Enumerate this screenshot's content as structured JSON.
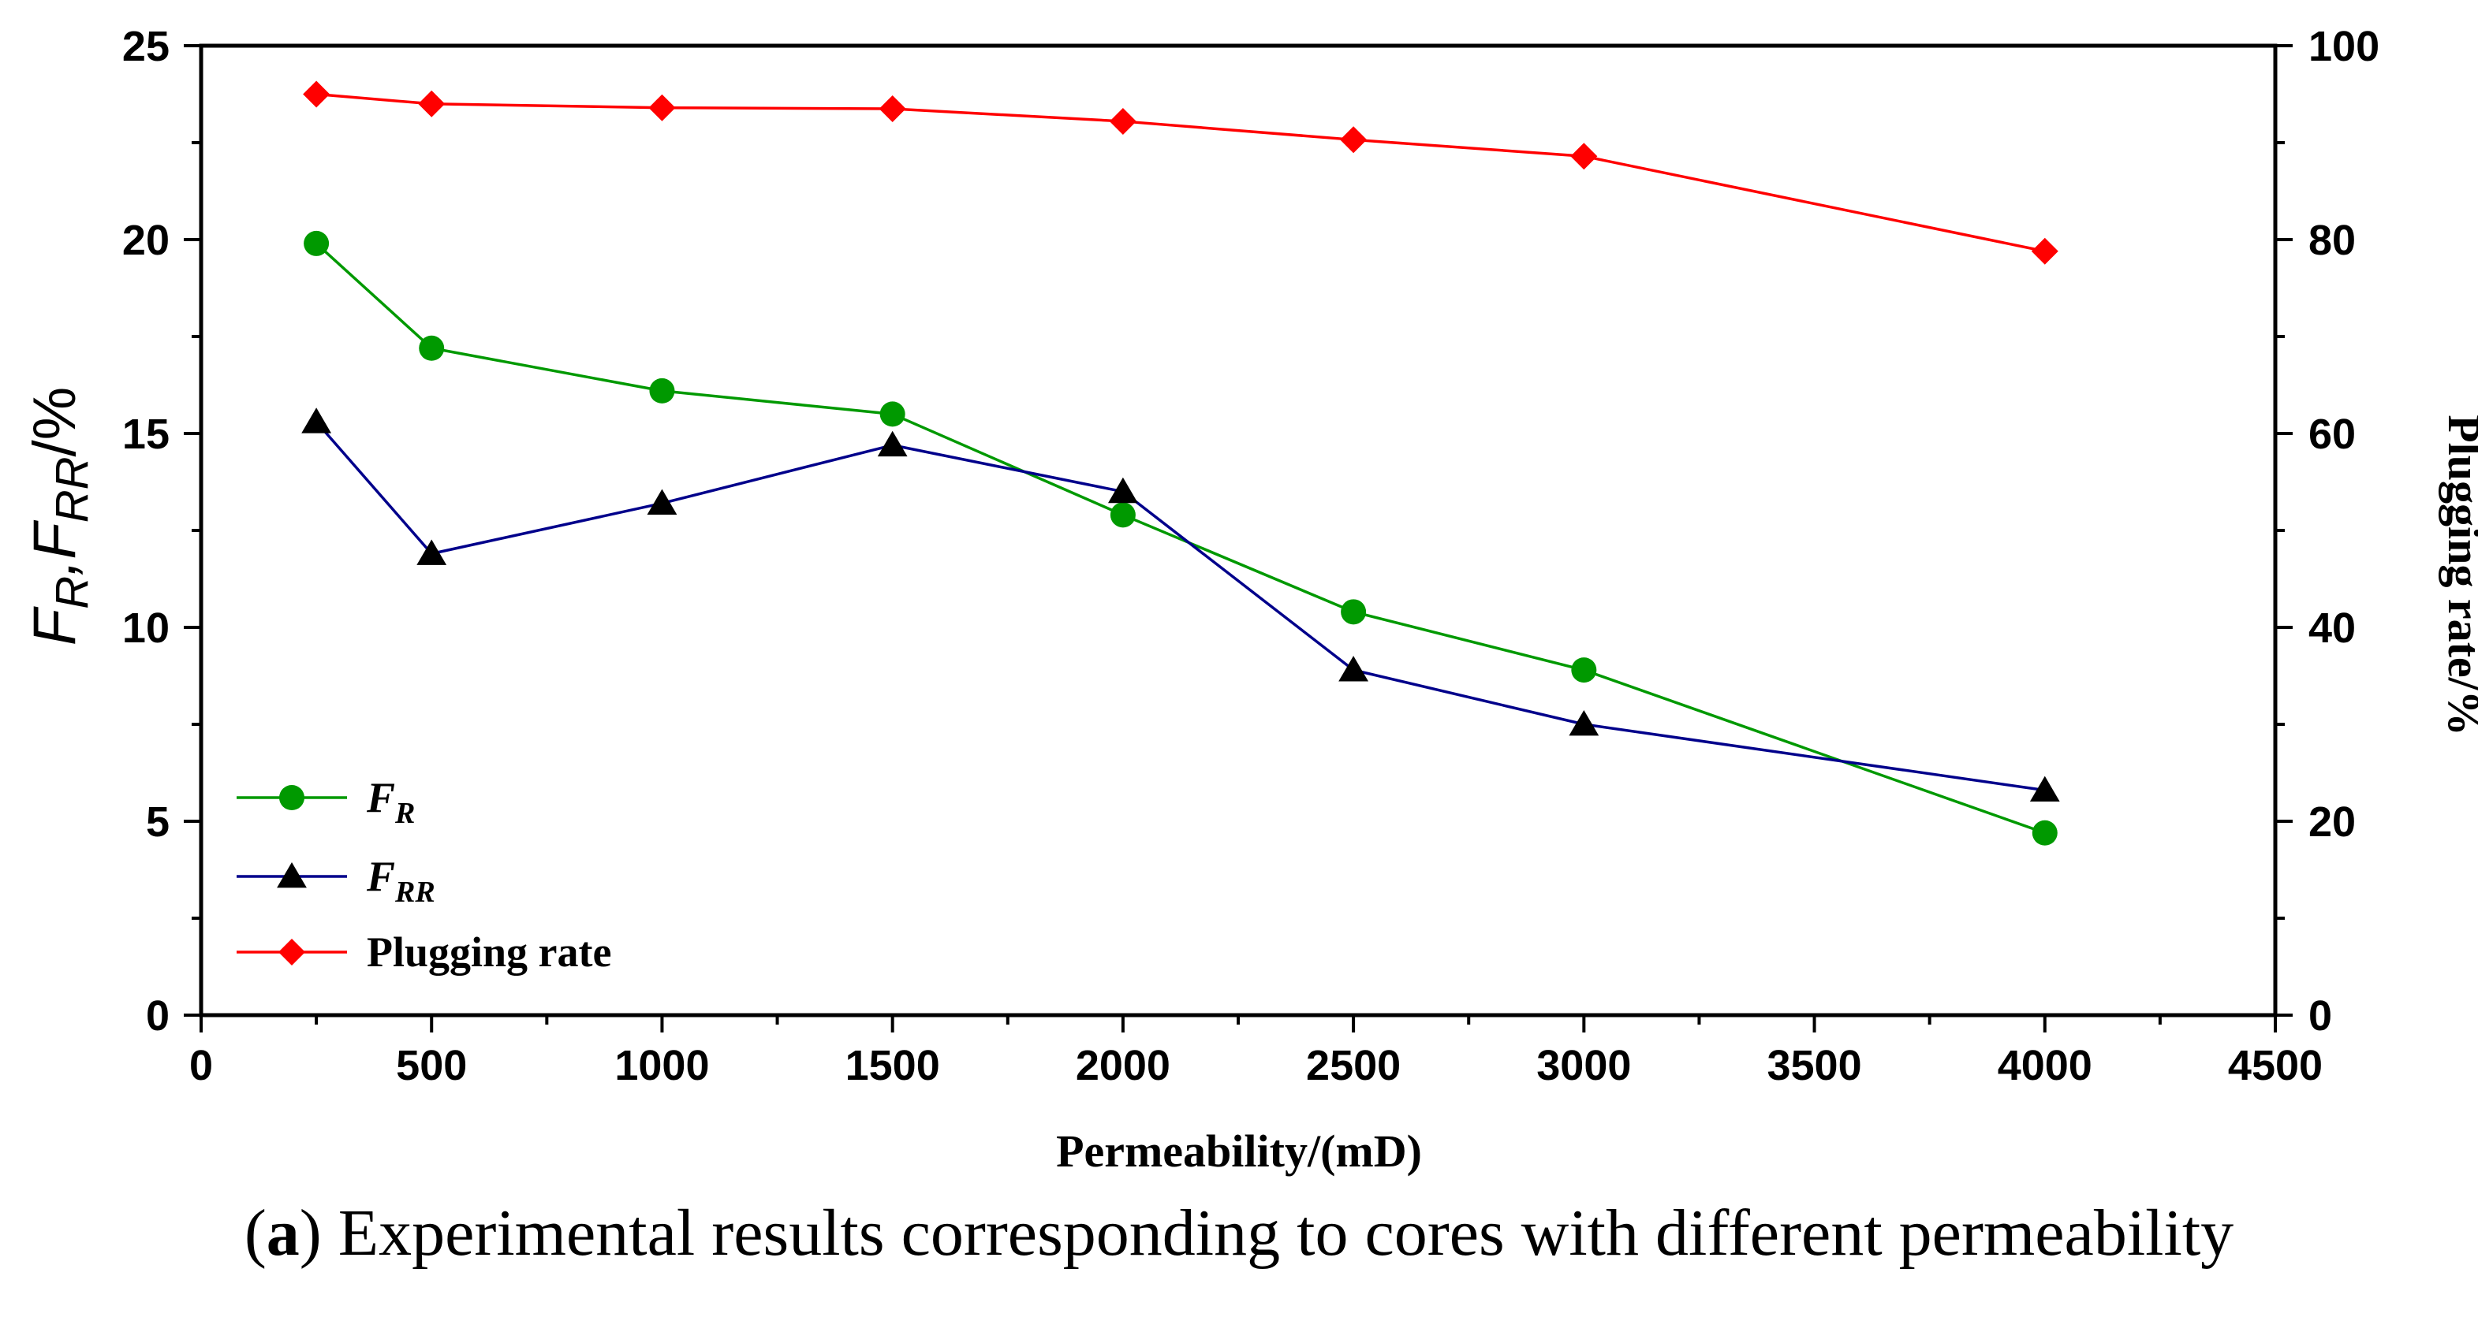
{
  "chart_data": {
    "type": "line",
    "title": "",
    "x": [
      250,
      500,
      1000,
      1500,
      2000,
      2500,
      3000,
      4000
    ],
    "xlabel": "Permeability/(mD)",
    "xlim": [
      0,
      4500
    ],
    "xticks": [
      0,
      500,
      1000,
      1500,
      2000,
      2500,
      3000,
      3500,
      4000,
      4500
    ],
    "ylabel_left": "FR,FRR/%",
    "ylim_left": [
      0,
      25
    ],
    "yticks_left": [
      0,
      5,
      10,
      15,
      20,
      25
    ],
    "ylabel_right": "Plugging rate/%",
    "ylim_right": [
      0,
      100
    ],
    "yticks_right": [
      0,
      20,
      40,
      60,
      80,
      100
    ],
    "grid": false,
    "legend_position": "bottom-left",
    "series": [
      {
        "name": "F",
        "subscript": "R",
        "axis": "left",
        "marker": "circle",
        "color": "#009900",
        "values": [
          19.9,
          17.2,
          16.1,
          15.5,
          12.9,
          10.4,
          8.9,
          4.7
        ]
      },
      {
        "name": "F",
        "subscript": "RR",
        "axis": "left",
        "marker": "triangle",
        "color": "#00008b",
        "values": [
          15.3,
          11.9,
          13.2,
          14.7,
          13.5,
          8.9,
          7.5,
          5.8
        ]
      },
      {
        "name": "Plugging rate",
        "subscript": "",
        "axis": "right",
        "marker": "diamond",
        "color": "#ff0000",
        "values": [
          95.0,
          94.0,
          93.6,
          93.5,
          92.2,
          90.3,
          88.6,
          78.8
        ]
      }
    ]
  },
  "axis_titles": {
    "x": "Permeability/(mD)",
    "y_right": "Plugging rate/%",
    "y_left_parts": [
      "F",
      "R",
      ",",
      "F",
      "RR",
      "/%"
    ]
  },
  "caption": {
    "label": "a",
    "open": "(",
    "close": ")",
    "text": " Experimental results corresponding to cores with different permeability"
  }
}
